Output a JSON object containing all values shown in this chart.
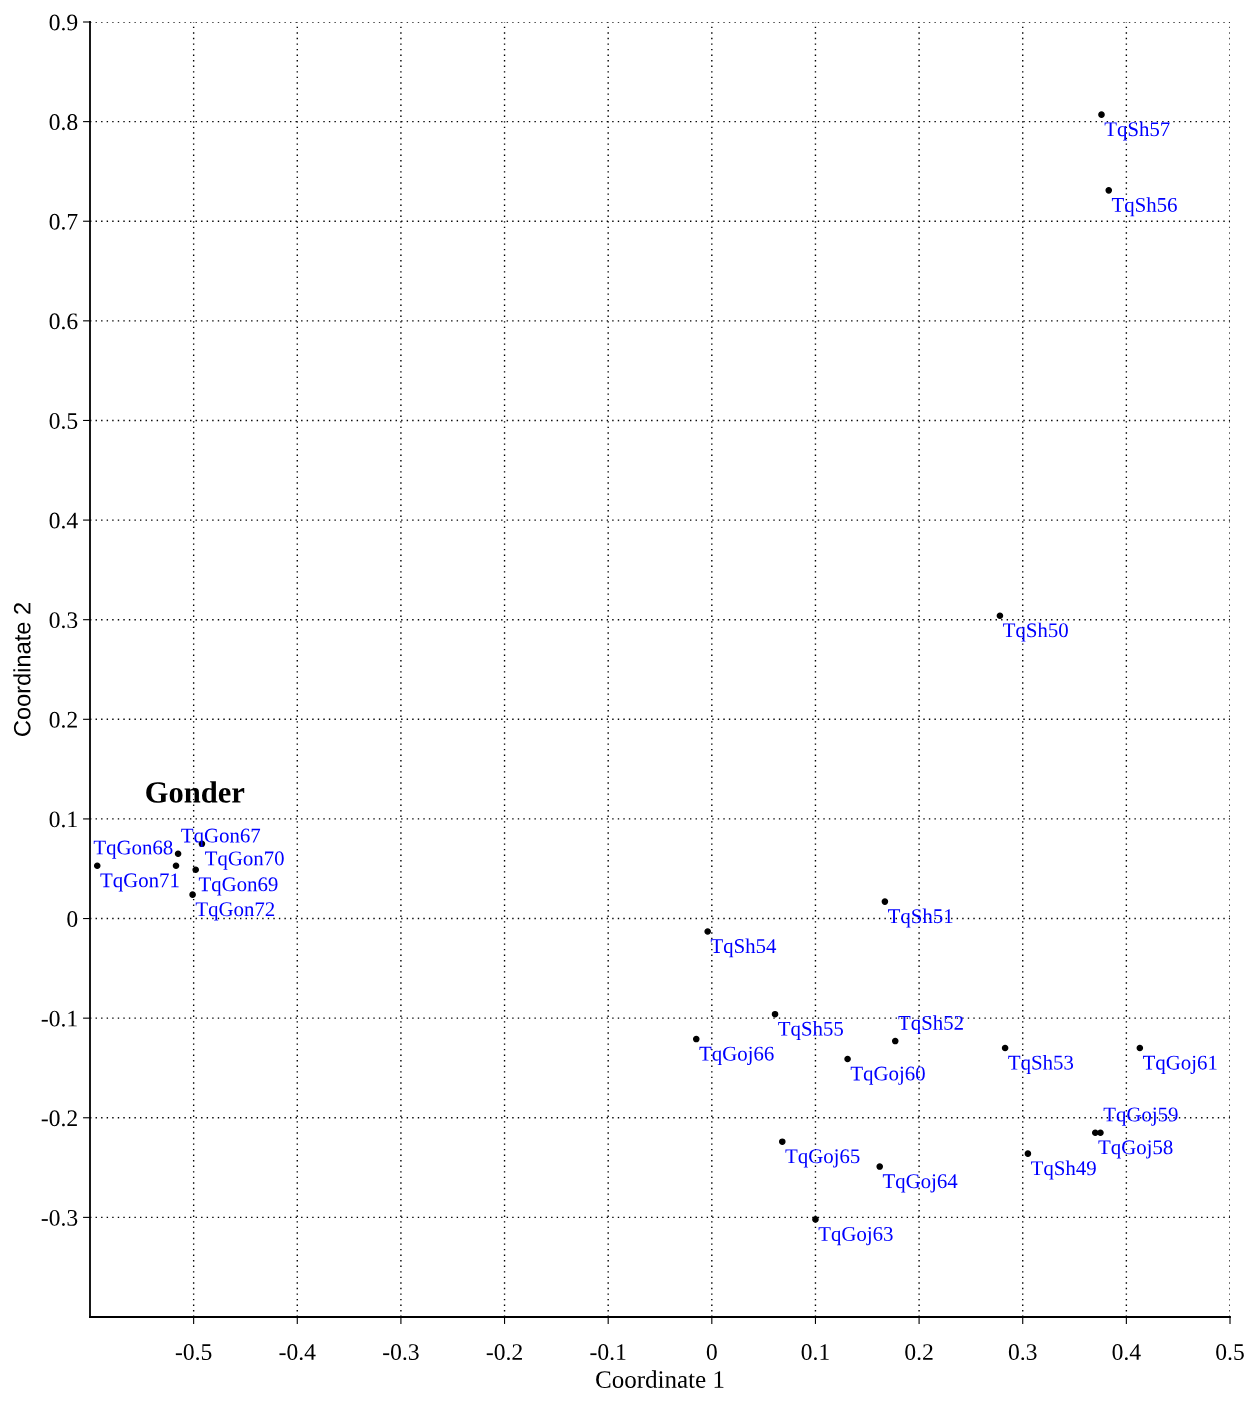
{
  "chart_data": {
    "type": "scatter",
    "xlabel": "Coordinate 1",
    "ylabel": "Coordinate 2",
    "series": [
      {
        "color": "#000000",
        "x": [
          0.376,
          0.383,
          0.278,
          -0.593,
          -0.515,
          -0.492,
          -0.517,
          -0.498,
          -0.501,
          0.167,
          -0.004,
          0.061,
          -0.015,
          0.131,
          0.177,
          0.283,
          0.413,
          0.37,
          0.375,
          0.305,
          0.068,
          0.162,
          0.1
        ],
        "values": [
          0.807,
          0.731,
          0.304,
          0.053,
          0.065,
          0.075,
          0.053,
          0.049,
          0.024,
          0.017,
          -0.013,
          -0.096,
          -0.121,
          -0.141,
          -0.123,
          -0.13,
          -0.13,
          -0.215,
          -0.215,
          -0.236,
          -0.224,
          -0.249,
          -0.302
        ]
      }
    ],
    "annotations": [
      "Gonder",
      {
        "text": "TqSh57",
        "x": 0.376,
        "y": 0.807
      },
      {
        "text": "TqSh56",
        "x": 0.383,
        "y": 0.731
      },
      {
        "text": "TqSh50",
        "x": 0.278,
        "y": 0.304
      },
      {
        "text": "TqGon71",
        "x": -0.593,
        "y": 0.053
      },
      {
        "text": "TqGon67",
        "x": -0.515,
        "y": 0.065
      },
      {
        "text": "TqGon70",
        "x": -0.492,
        "y": 0.075
      },
      {
        "text": "TqGon68",
        "x": -0.517,
        "y": 0.053
      },
      {
        "text": "TqGon69",
        "x": -0.498,
        "y": 0.049
      },
      {
        "text": "TqGon72",
        "x": -0.501,
        "y": 0.024
      },
      {
        "text": "TqSh51",
        "x": 0.167,
        "y": 0.017
      },
      {
        "text": "TqSh54",
        "x": -0.004,
        "y": -0.013
      },
      {
        "text": "TqSh55",
        "x": 0.061,
        "y": -0.096
      },
      {
        "text": "TqGoj66",
        "x": -0.015,
        "y": -0.121
      },
      {
        "text": "TqGoj60",
        "x": 0.131,
        "y": -0.141
      },
      {
        "text": "TqSh52",
        "x": 0.177,
        "y": -0.123
      },
      {
        "text": "TqSh53",
        "x": 0.283,
        "y": -0.13
      },
      {
        "text": "TqGoj61",
        "x": 0.413,
        "y": -0.13
      },
      {
        "text": "TqGoj58",
        "x": 0.37,
        "y": -0.215
      },
      {
        "text": "TqGoj59",
        "x": 0.375,
        "y": -0.215
      },
      {
        "text": "TqSh49",
        "x": 0.305,
        "y": -0.236
      },
      {
        "text": "TqGoj65",
        "x": 0.068,
        "y": -0.224
      },
      {
        "text": "TqGoj64",
        "x": 0.162,
        "y": -0.249
      },
      {
        "text": "TqGoj63",
        "x": 0.1,
        "y": -0.302
      }
    ],
    "xlim": [
      -0.6,
      0.5
    ],
    "ylim": [
      -0.4,
      0.9
    ],
    "xticks": [
      {
        "value": -0.5,
        "label": "-0.5"
      },
      {
        "value": -0.4,
        "label": "-0.4"
      },
      {
        "value": -0.3,
        "label": "-0.3"
      },
      {
        "value": -0.2,
        "label": "-0.2"
      },
      {
        "value": -0.1,
        "label": "-0.1"
      },
      0,
      0.1,
      0.2,
      0.3,
      0.4,
      0.5
    ],
    "yticks": [
      {
        "value": -0.3,
        "label": "-0.3"
      },
      {
        "value": -0.2,
        "label": "-0.2"
      },
      {
        "value": -0.1,
        "label": "-0.1"
      },
      0,
      0.1,
      0.2,
      0.3,
      0.4,
      0.5,
      0.6,
      0.7,
      0.8,
      0.9
    ],
    "grid": true,
    "marker": "circle"
  }
}
